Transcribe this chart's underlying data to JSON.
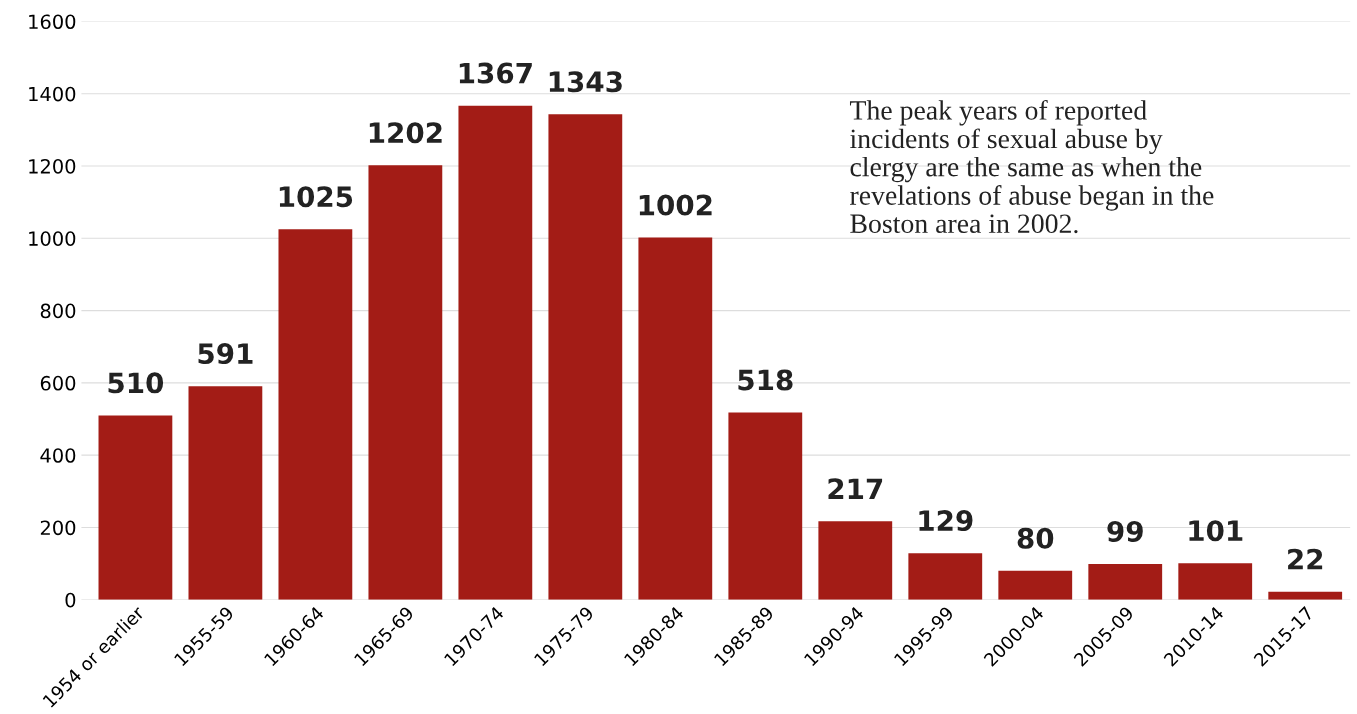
{
  "chart_data": {
    "type": "bar",
    "categories": [
      "1954 or earlier",
      "1955-59",
      "1960-64",
      "1965-69",
      "1970-74",
      "1975-79",
      "1980-84",
      "1985-89",
      "1990-94",
      "1995-99",
      "2000-04",
      "2005-09",
      "2010-14",
      "2015-17"
    ],
    "values": [
      510,
      591,
      1025,
      1202,
      1367,
      1343,
      1002,
      518,
      217,
      129,
      80,
      99,
      101,
      22
    ],
    "color": "#a31c16",
    "data_labels": true,
    "ylim": [
      0,
      1600
    ],
    "yticks": [
      0,
      200,
      400,
      600,
      800,
      1000,
      1200,
      1400,
      1600
    ],
    "grid": "y",
    "annotations": [
      "The peak years of reported\nincidents of sexual abuse by\nclergy are the same as when the\nrevelations of abuse began in the\nBoston area in 2002."
    ]
  }
}
